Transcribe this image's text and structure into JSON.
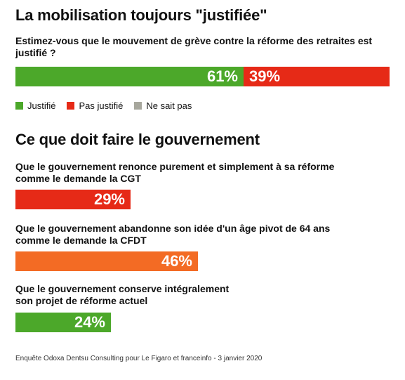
{
  "colors": {
    "green": "#4ca82a",
    "red": "#e62a17",
    "orange": "#f36b24",
    "grey": "#a7a79d"
  },
  "section1": {
    "title": "La mobilisation toujours \"justifiée\"",
    "question": "Estimez-vous que le mouvement de grève contre la réforme des retraites est justifié ?",
    "legend": [
      {
        "label": "Justifié",
        "color": "#4ca82a"
      },
      {
        "label": "Pas justifié",
        "color": "#e62a17"
      },
      {
        "label": "Ne sait pas",
        "color": "#a7a79d"
      }
    ]
  },
  "section2": {
    "title": "Ce que doit faire le gouvernement"
  },
  "source": "Enquête Odoxa Dentsu Consulting pour Le Figaro et franceinfo - 3 janvier 2020",
  "chart_data": [
    {
      "type": "bar",
      "orientation": "horizontal-stacked",
      "categories": [
        "Estimez-vous que le mouvement de grève contre la réforme des retraites est justifié ?"
      ],
      "series": [
        {
          "name": "Justifié",
          "values": [
            61
          ],
          "color": "#4ca82a",
          "label": "61%"
        },
        {
          "name": "Pas justifié",
          "values": [
            39
          ],
          "color": "#e62a17",
          "label": "39%"
        }
      ],
      "ylim": [
        0,
        100
      ]
    },
    {
      "type": "bar",
      "orientation": "horizontal",
      "categories": [
        "Que le gouvernement renonce purement et simplement à sa réforme comme le demande la CGT",
        "Que le gouvernement abandonne son idée d'un âge pivot de 64 ans comme le demande la CFDT",
        "Que le gouvernement conserve intégralement son projet de réforme actuel"
      ],
      "values": [
        29,
        46,
        24
      ],
      "labels": [
        "29%",
        "46%",
        "24%"
      ],
      "colors": [
        "#e62a17",
        "#f36b24",
        "#4ca82a"
      ],
      "ylim": [
        0,
        100
      ]
    }
  ]
}
